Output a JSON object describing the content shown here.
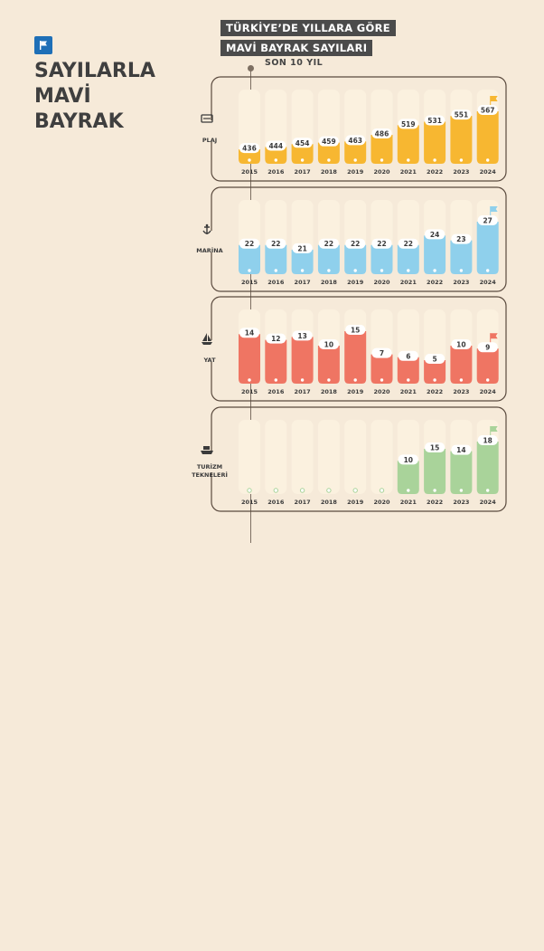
{
  "watermark": "2024",
  "title_lines": [
    "SAYILARLA",
    "MAVİ",
    "BAYRAK"
  ],
  "chart_title_lines": [
    "TÜRKİYE’DE YILLARA GÖRE",
    "MAVİ BAYRAK SAYILARI"
  ],
  "chart_subtitle": "SON 10 YIL",
  "colors": {
    "plaj": "#f7b731",
    "marina": "#8fd0ec",
    "yat": "#ef7563",
    "turizm": "#a9d39a",
    "track": "#fbf1df",
    "frame": "#5a4a3e",
    "text": "#3b3b3b",
    "flag_logo": "#1e6fb7"
  },
  "chart_data": {
    "type": "bar",
    "categories": [
      "2015",
      "2016",
      "2017",
      "2018",
      "2019",
      "2020",
      "2021",
      "2022",
      "2023",
      "2024"
    ],
    "panels": [
      {
        "name": "PLAJ",
        "icon": "beach-icon",
        "color": "#f7b731",
        "values": [
          436,
          444,
          454,
          459,
          463,
          486,
          519,
          531,
          551,
          567
        ]
      },
      {
        "name": "MARİNA",
        "icon": "anchor-icon",
        "color": "#8fd0ec",
        "values": [
          22,
          22,
          21,
          22,
          22,
          22,
          22,
          24,
          23,
          27
        ]
      },
      {
        "name": "YAT",
        "icon": "sailboat-icon",
        "color": "#ef7563",
        "values": [
          14,
          12,
          13,
          10,
          15,
          7,
          6,
          5,
          10,
          9
        ]
      },
      {
        "name": "TURİZM TEKNELERİ",
        "icon": "ship-icon",
        "color": "#a9d39a",
        "values": [
          null,
          null,
          null,
          null,
          null,
          null,
          10,
          15,
          14,
          18
        ]
      }
    ]
  }
}
